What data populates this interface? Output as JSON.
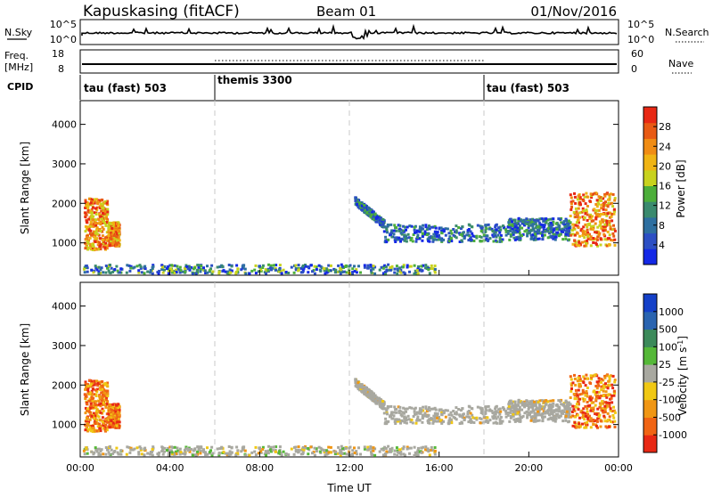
{
  "header": {
    "station": "Kapuskasing (fitACF)",
    "beam": "Beam 01",
    "date": "01/Nov/2016"
  },
  "noise_panel": {
    "left_label": "N.Sky",
    "left_ticks": [
      "10^5",
      "10^0"
    ],
    "right_label": "N.Search",
    "right_ticks": [
      "10^5",
      "10^0"
    ]
  },
  "freq_panel": {
    "left_label_1": "Freq.",
    "left_label_2": "[MHz]",
    "left_ticks": [
      "18",
      "8"
    ],
    "right_label": "Nave",
    "right_ticks": [
      "60",
      "0"
    ]
  },
  "cpid": {
    "label": "CPID",
    "segments": [
      {
        "label": "tau (fast) 503",
        "start_hour": 0
      },
      {
        "label": "themis 3300",
        "start_hour": 6
      },
      {
        "label": "tau (fast) 503",
        "start_hour": 18
      }
    ]
  },
  "chart_data": [
    {
      "type": "heatmap",
      "name": "power",
      "ylabel": "Slant Range [km]",
      "xlim": [
        0,
        24
      ],
      "ylim": [
        180,
        4600
      ],
      "yticks": [
        1000,
        2000,
        3000,
        4000
      ],
      "colorbar": {
        "label": "Power [dB]",
        "ticks": [
          "4",
          "8",
          "12",
          "16",
          "20",
          "24",
          "28"
        ],
        "colors": [
          "#1428e6",
          "#2c4fc4",
          "#2e6fa0",
          "#3a8a6e",
          "#4cae3a",
          "#c8d21e",
          "#f0b414",
          "#f08c14",
          "#e85a14",
          "#e82814"
        ]
      },
      "regions": [
        {
          "t0": 0.15,
          "t1": 1.2,
          "r0": 850,
          "r1": 2150,
          "kind": "strong"
        },
        {
          "t0": 1.2,
          "t1": 1.7,
          "r0": 950,
          "r1": 1550,
          "kind": "strong"
        },
        {
          "t0": 0.1,
          "t1": 15.8,
          "r0": 250,
          "r1": 480,
          "kind": "ground"
        },
        {
          "t0": 12.2,
          "t1": 13.5,
          "r0": 1500,
          "r1": 2100,
          "kind": "arc"
        },
        {
          "t0": 13.5,
          "t1": 19.0,
          "r0": 1050,
          "r1": 1500,
          "kind": "band"
        },
        {
          "t0": 19.0,
          "t1": 21.8,
          "r0": 1100,
          "r1": 1650,
          "kind": "band"
        },
        {
          "t0": 21.8,
          "t1": 23.8,
          "r0": 950,
          "r1": 2300,
          "kind": "strong"
        }
      ]
    },
    {
      "type": "heatmap",
      "name": "velocity",
      "ylabel": "Slant Range [km]",
      "xlabel": "Time UT",
      "xlim": [
        0,
        24
      ],
      "ylim": [
        180,
        4600
      ],
      "yticks": [
        1000,
        2000,
        3000,
        4000
      ],
      "xticks": [
        "00:00",
        "04:00",
        "08:00",
        "12:00",
        "16:00",
        "20:00",
        "00:00"
      ],
      "colorbar": {
        "label": "Velocity [m s",
        "label_sup": "-1",
        "label_end": "]",
        "ticks": [
          "1000",
          "500",
          "100",
          "25",
          "-25",
          "-100",
          "-500",
          "-1000"
        ],
        "colors": [
          "#1440c8",
          "#2a64b0",
          "#3c8a5a",
          "#55b838",
          "#a8a8a0",
          "#f0c814",
          "#f09614",
          "#f06414",
          "#e82814"
        ]
      }
    }
  ],
  "colors": {
    "noise_line": "#000000",
    "dashed_hour_lines": "#c8c8c8"
  }
}
